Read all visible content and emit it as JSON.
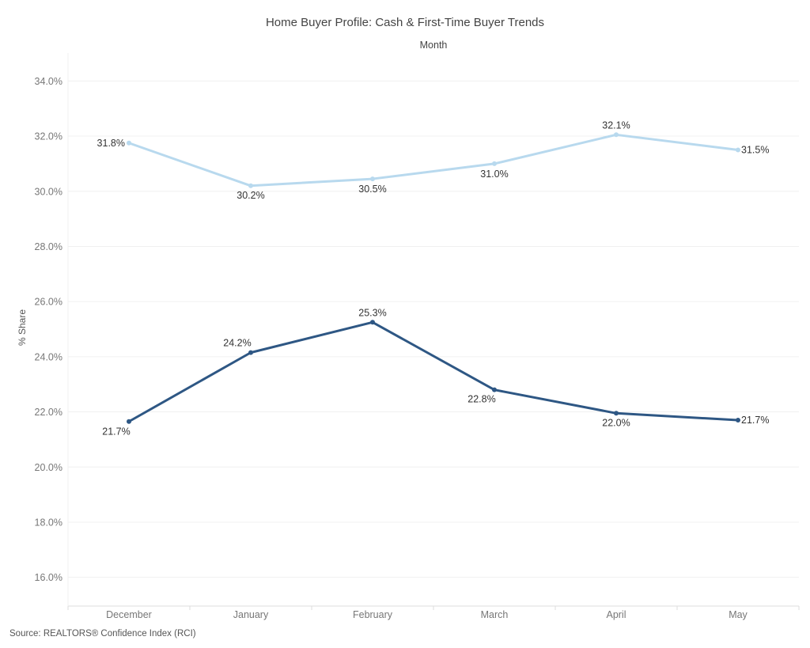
{
  "chart_data": {
    "type": "line",
    "title": "Home Buyer Profile: Cash & First-Time Buyer Trends",
    "xlabel": "Month",
    "ylabel": "% Share",
    "categories": [
      "December",
      "January",
      "February",
      "March",
      "April",
      "May"
    ],
    "series": [
      {
        "values": [
          31.75,
          30.2,
          30.45,
          31.0,
          32.05,
          31.5
        ],
        "labels": [
          "31.8%",
          "30.2%",
          "30.5%",
          "31.0%",
          "32.1%",
          "31.5%"
        ],
        "color": "#b8d9ee"
      },
      {
        "values": [
          21.65,
          24.15,
          25.25,
          22.8,
          21.95,
          21.7
        ],
        "labels": [
          "21.7%",
          "24.2%",
          "25.3%",
          "22.8%",
          "22.0%",
          "21.7%"
        ],
        "color": "#2e5784"
      }
    ],
    "yticks": [
      "16.0%",
      "18.0%",
      "20.0%",
      "22.0%",
      "24.0%",
      "26.0%",
      "28.0%",
      "30.0%",
      "32.0%",
      "34.0%"
    ],
    "ylim": [
      15.0,
      35.0
    ],
    "grid": true,
    "source": "Source: REALTORS® Confidence Index (RCI)"
  }
}
